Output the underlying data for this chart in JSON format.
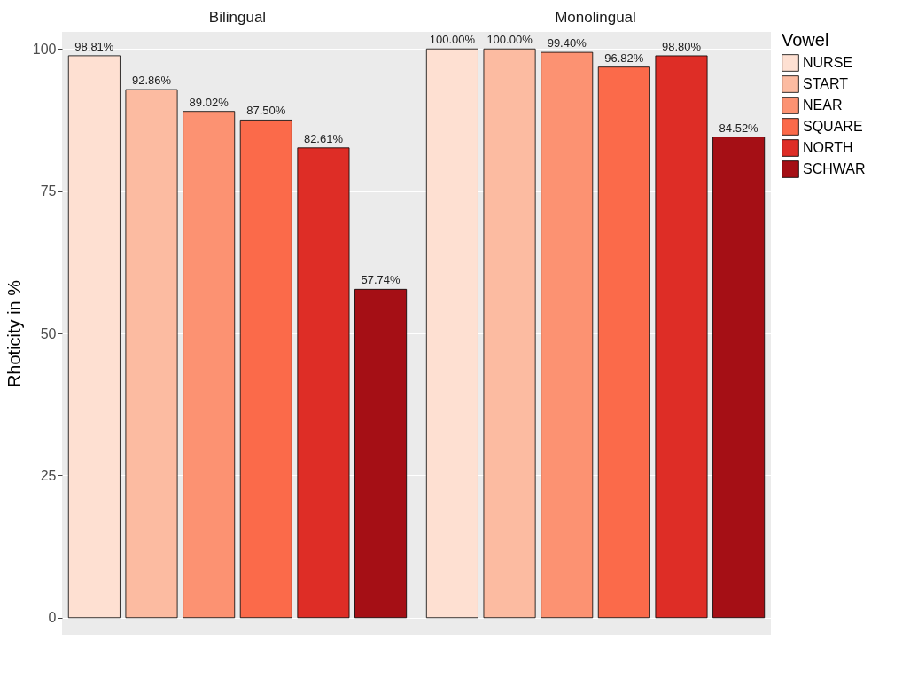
{
  "chart_data": {
    "type": "bar",
    "ylabel": "Rhoticity in %",
    "legend_title": "Vowel",
    "categories": [
      "Bilingual",
      "Monolingual"
    ],
    "series": [
      {
        "name": "NURSE",
        "color": "#fee0d2",
        "values": [
          98.81,
          100
        ],
        "value_labels": [
          "98.81%",
          "100.00%"
        ]
      },
      {
        "name": "START",
        "color": "#fcbba1",
        "values": [
          92.86,
          100
        ],
        "value_labels": [
          "92.86%",
          "100.00%"
        ]
      },
      {
        "name": "NEAR",
        "color": "#fc9272",
        "values": [
          89.02,
          99.4
        ],
        "value_labels": [
          "89.02%",
          "99.40%"
        ]
      },
      {
        "name": "SQUARE",
        "color": "#fb6a4a",
        "values": [
          87.5,
          96.82
        ],
        "value_labels": [
          "87.50%",
          "96.82%"
        ]
      },
      {
        "name": "NORTH",
        "color": "#de2d26",
        "values": [
          82.61,
          98.8
        ],
        "value_labels": [
          "82.61%",
          "98.80%"
        ]
      },
      {
        "name": "SCHWAR",
        "color": "#a50f15",
        "values": [
          57.74,
          84.52
        ],
        "value_labels": [
          "57.74%",
          "84.52%"
        ]
      }
    ],
    "ylim": [
      -3,
      103
    ],
    "yticks": [
      0,
      25,
      50,
      75,
      100
    ],
    "grid": "y",
    "legend": "right"
  }
}
